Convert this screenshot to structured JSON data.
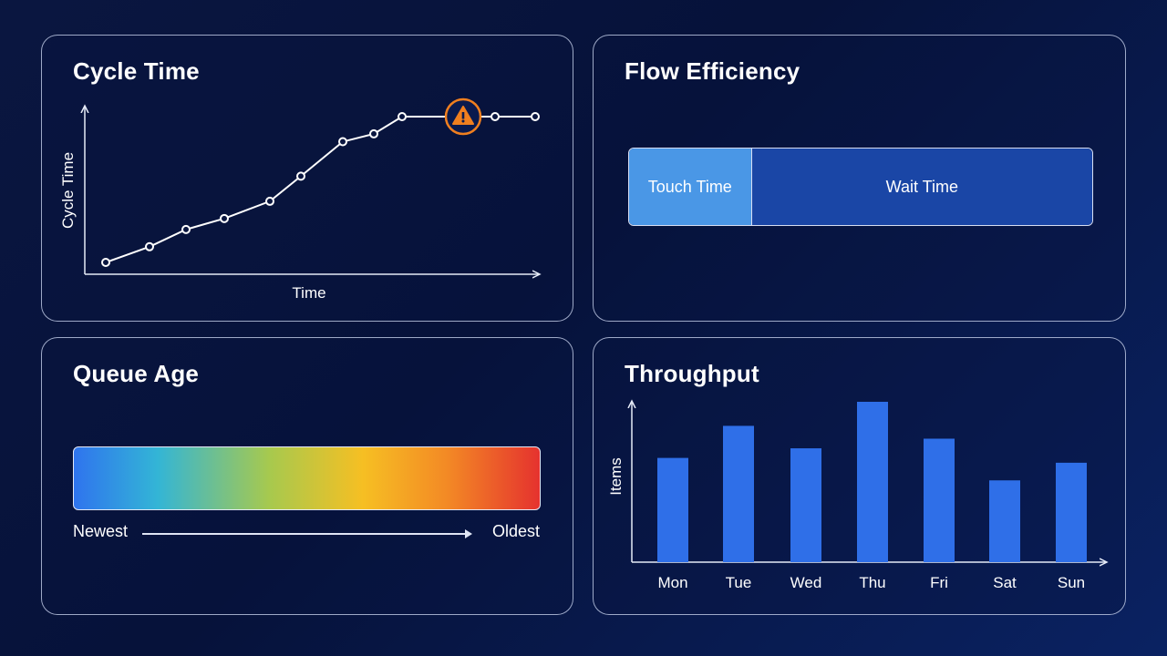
{
  "cycle_time": {
    "title": "Cycle Time",
    "chart_data": {
      "type": "line",
      "x": [
        1,
        2,
        3,
        4,
        5,
        6,
        7,
        8,
        9,
        10,
        11,
        12
      ],
      "values": [
        1,
        2,
        3.1,
        3.8,
        4.9,
        6.5,
        8.7,
        9.2,
        10.3,
        10.3,
        10.3,
        10.3
      ],
      "xlabel": "Time",
      "ylabel": "Cycle Time",
      "warning_point_index": 9,
      "warning_icon": "warning-triangle-icon",
      "warning_color": "#f07f1f",
      "line_color": "#ffffff"
    }
  },
  "flow_efficiency": {
    "title": "Flow Efficiency",
    "chart_data": {
      "type": "bar",
      "stacked": true,
      "categories": [
        "Touch Time",
        "Wait Time"
      ],
      "values": [
        26.5,
        73.5
      ],
      "colors": [
        "#4a97e6",
        "#1a46a6"
      ]
    }
  },
  "queue_age": {
    "title": "Queue Age",
    "newest_label": "Newest",
    "oldest_label": "Oldest",
    "gradient_colors": [
      "#2f74ee",
      "#33b5d6",
      "#a7c94e",
      "#f6bf23",
      "#f38a25",
      "#e5322e"
    ]
  },
  "throughput": {
    "title": "Throughput",
    "chart_data": {
      "type": "bar",
      "categories": [
        "Mon",
        "Tue",
        "Wed",
        "Thu",
        "Fri",
        "Sat",
        "Sun"
      ],
      "values": [
        6.5,
        8.5,
        7.1,
        10,
        7.7,
        5.1,
        6.2
      ],
      "ylim": [
        0,
        10
      ],
      "xlabel": "",
      "ylabel": "Items",
      "bar_color": "#2f6fe8"
    }
  }
}
